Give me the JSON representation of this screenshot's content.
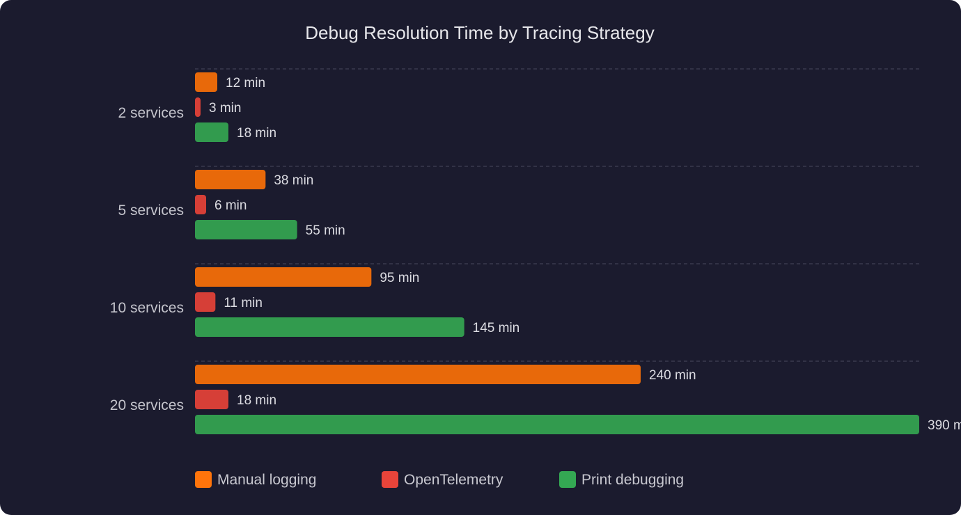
{
  "chart_data": {
    "type": "bar",
    "orientation": "horizontal",
    "title": "Debug Resolution Time by Tracing Strategy",
    "xlabel": "",
    "ylabel": "",
    "categories": [
      "2 services",
      "5 services",
      "10 services",
      "20 services"
    ],
    "series": [
      {
        "name": "Manual logging",
        "values": [
          12,
          38,
          95,
          240
        ],
        "color": "#e8690a",
        "legend_color": "#ff740b"
      },
      {
        "name": "OpenTelemetry",
        "values": [
          3,
          6,
          11,
          18
        ],
        "color": "#d63f37",
        "legend_color": "#e8443a"
      },
      {
        "name": "Print debugging",
        "values": [
          18,
          55,
          145,
          390
        ],
        "color": "#329b4e",
        "legend_color": "#34a853"
      }
    ],
    "value_suffix": " min",
    "xlim": [
      0,
      390
    ],
    "grid": "dashed separators between categories",
    "legend_position": "bottom-left",
    "background": "#1b1b2e"
  }
}
